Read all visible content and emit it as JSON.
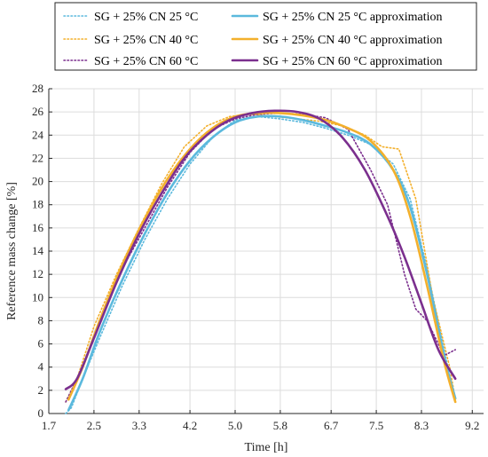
{
  "chart_data": {
    "type": "line",
    "xlabel": "Time [h]",
    "ylabel": "Reference mass change [%]",
    "xlim": [
      1.7,
      9.4
    ],
    "ylim": [
      0,
      28
    ],
    "xticks": [
      "1.7",
      "2.5",
      "3.3",
      "4.2",
      "5.0",
      "5.8",
      "6.7",
      "7.5",
      "8.3",
      "9.2"
    ],
    "yticks": [
      "0",
      "2",
      "4",
      "6",
      "8",
      "10",
      "12",
      "14",
      "16",
      "18",
      "20",
      "22",
      "24",
      "26",
      "28"
    ],
    "grid": true,
    "legend": {
      "position": "top",
      "columns": 2
    },
    "series": [
      {
        "name": "SG + 25% CN 25 °C",
        "color": "#5BB9DD",
        "style": "dotted",
        "x": [
          2.0,
          2.1,
          2.3,
          2.6,
          3.0,
          3.4,
          3.8,
          4.2,
          4.6,
          5.0,
          5.4,
          5.8,
          6.2,
          6.6,
          7.0,
          7.4,
          7.8,
          8.1,
          8.4,
          8.7,
          8.9
        ],
        "y": [
          0,
          0.5,
          3.0,
          6.5,
          11.0,
          15.0,
          18.5,
          21.5,
          23.8,
          25.3,
          25.6,
          25.4,
          25.1,
          24.6,
          24.0,
          23.2,
          21.5,
          18.5,
          12.5,
          5.5,
          1.0
        ]
      },
      {
        "name": "SG + 25% CN 25 °C approximation",
        "color": "#5BB9DD",
        "style": "solid",
        "x": [
          2.05,
          2.3,
          2.6,
          3.0,
          3.4,
          3.8,
          4.2,
          4.6,
          5.0,
          5.4,
          5.8,
          6.2,
          6.6,
          7.0,
          7.4,
          7.8,
          8.1,
          8.4,
          8.7,
          8.9
        ],
        "y": [
          0.3,
          3.0,
          7.0,
          11.5,
          15.5,
          19.0,
          21.8,
          23.8,
          25.1,
          25.6,
          25.6,
          25.3,
          24.8,
          24.2,
          23.2,
          21.0,
          17.8,
          12.0,
          5.0,
          1.3
        ]
      },
      {
        "name": "SG + 25% CN 40 °C",
        "color": "#F3B02C",
        "style": "dotted",
        "x": [
          2.0,
          2.2,
          2.5,
          2.9,
          3.3,
          3.7,
          4.1,
          4.5,
          4.9,
          5.3,
          5.7,
          6.1,
          6.5,
          6.9,
          7.3,
          7.6,
          7.9,
          8.2,
          8.5,
          8.8,
          8.9
        ],
        "y": [
          1.0,
          3.0,
          7.5,
          12.0,
          16.0,
          19.8,
          23.0,
          24.8,
          25.6,
          25.8,
          25.6,
          25.4,
          25.2,
          24.8,
          24.0,
          23.0,
          22.8,
          18.5,
          10.0,
          4.0,
          1.2
        ]
      },
      {
        "name": "SG + 25% CN 40 °C approximation",
        "color": "#F3B02C",
        "style": "solid",
        "x": [
          2.05,
          2.3,
          2.6,
          3.0,
          3.4,
          3.8,
          4.2,
          4.6,
          5.0,
          5.4,
          5.8,
          6.2,
          6.6,
          7.0,
          7.4,
          7.8,
          8.1,
          8.4,
          8.7,
          8.9
        ],
        "y": [
          1.2,
          4.0,
          8.0,
          12.8,
          16.8,
          20.2,
          22.8,
          24.6,
          25.6,
          25.9,
          25.9,
          25.7,
          25.3,
          24.6,
          23.5,
          21.0,
          17.0,
          11.0,
          4.5,
          1.0
        ]
      },
      {
        "name": "SG + 25% CN 60 °C",
        "color": "#7B2F8E",
        "style": "dotted",
        "x": [
          2.0,
          2.3,
          2.6,
          3.0,
          3.4,
          3.8,
          4.2,
          4.6,
          5.0,
          5.4,
          5.8,
          6.2,
          6.6,
          7.0,
          7.4,
          7.7,
          8.0,
          8.2,
          8.4,
          8.7,
          8.9
        ],
        "y": [
          1.0,
          4.0,
          8.0,
          12.5,
          16.0,
          19.5,
          22.5,
          24.5,
          25.4,
          25.8,
          25.9,
          25.8,
          25.5,
          24.5,
          21.0,
          18.0,
          12.0,
          9.0,
          8.0,
          5.0,
          5.5
        ]
      },
      {
        "name": "SG + 25% CN 60 °C approximation",
        "color": "#7B2F8E",
        "style": "solid",
        "x": [
          2.0,
          2.2,
          2.5,
          2.9,
          3.3,
          3.7,
          4.1,
          4.5,
          4.9,
          5.3,
          5.7,
          6.1,
          6.5,
          6.9,
          7.3,
          7.7,
          8.0,
          8.3,
          8.6,
          8.9
        ],
        "y": [
          2.1,
          3.0,
          6.5,
          11.3,
          15.5,
          19.0,
          22.0,
          24.0,
          25.3,
          25.9,
          26.1,
          26.0,
          25.4,
          23.8,
          21.0,
          17.0,
          13.5,
          9.5,
          5.5,
          3.0
        ]
      }
    ]
  }
}
